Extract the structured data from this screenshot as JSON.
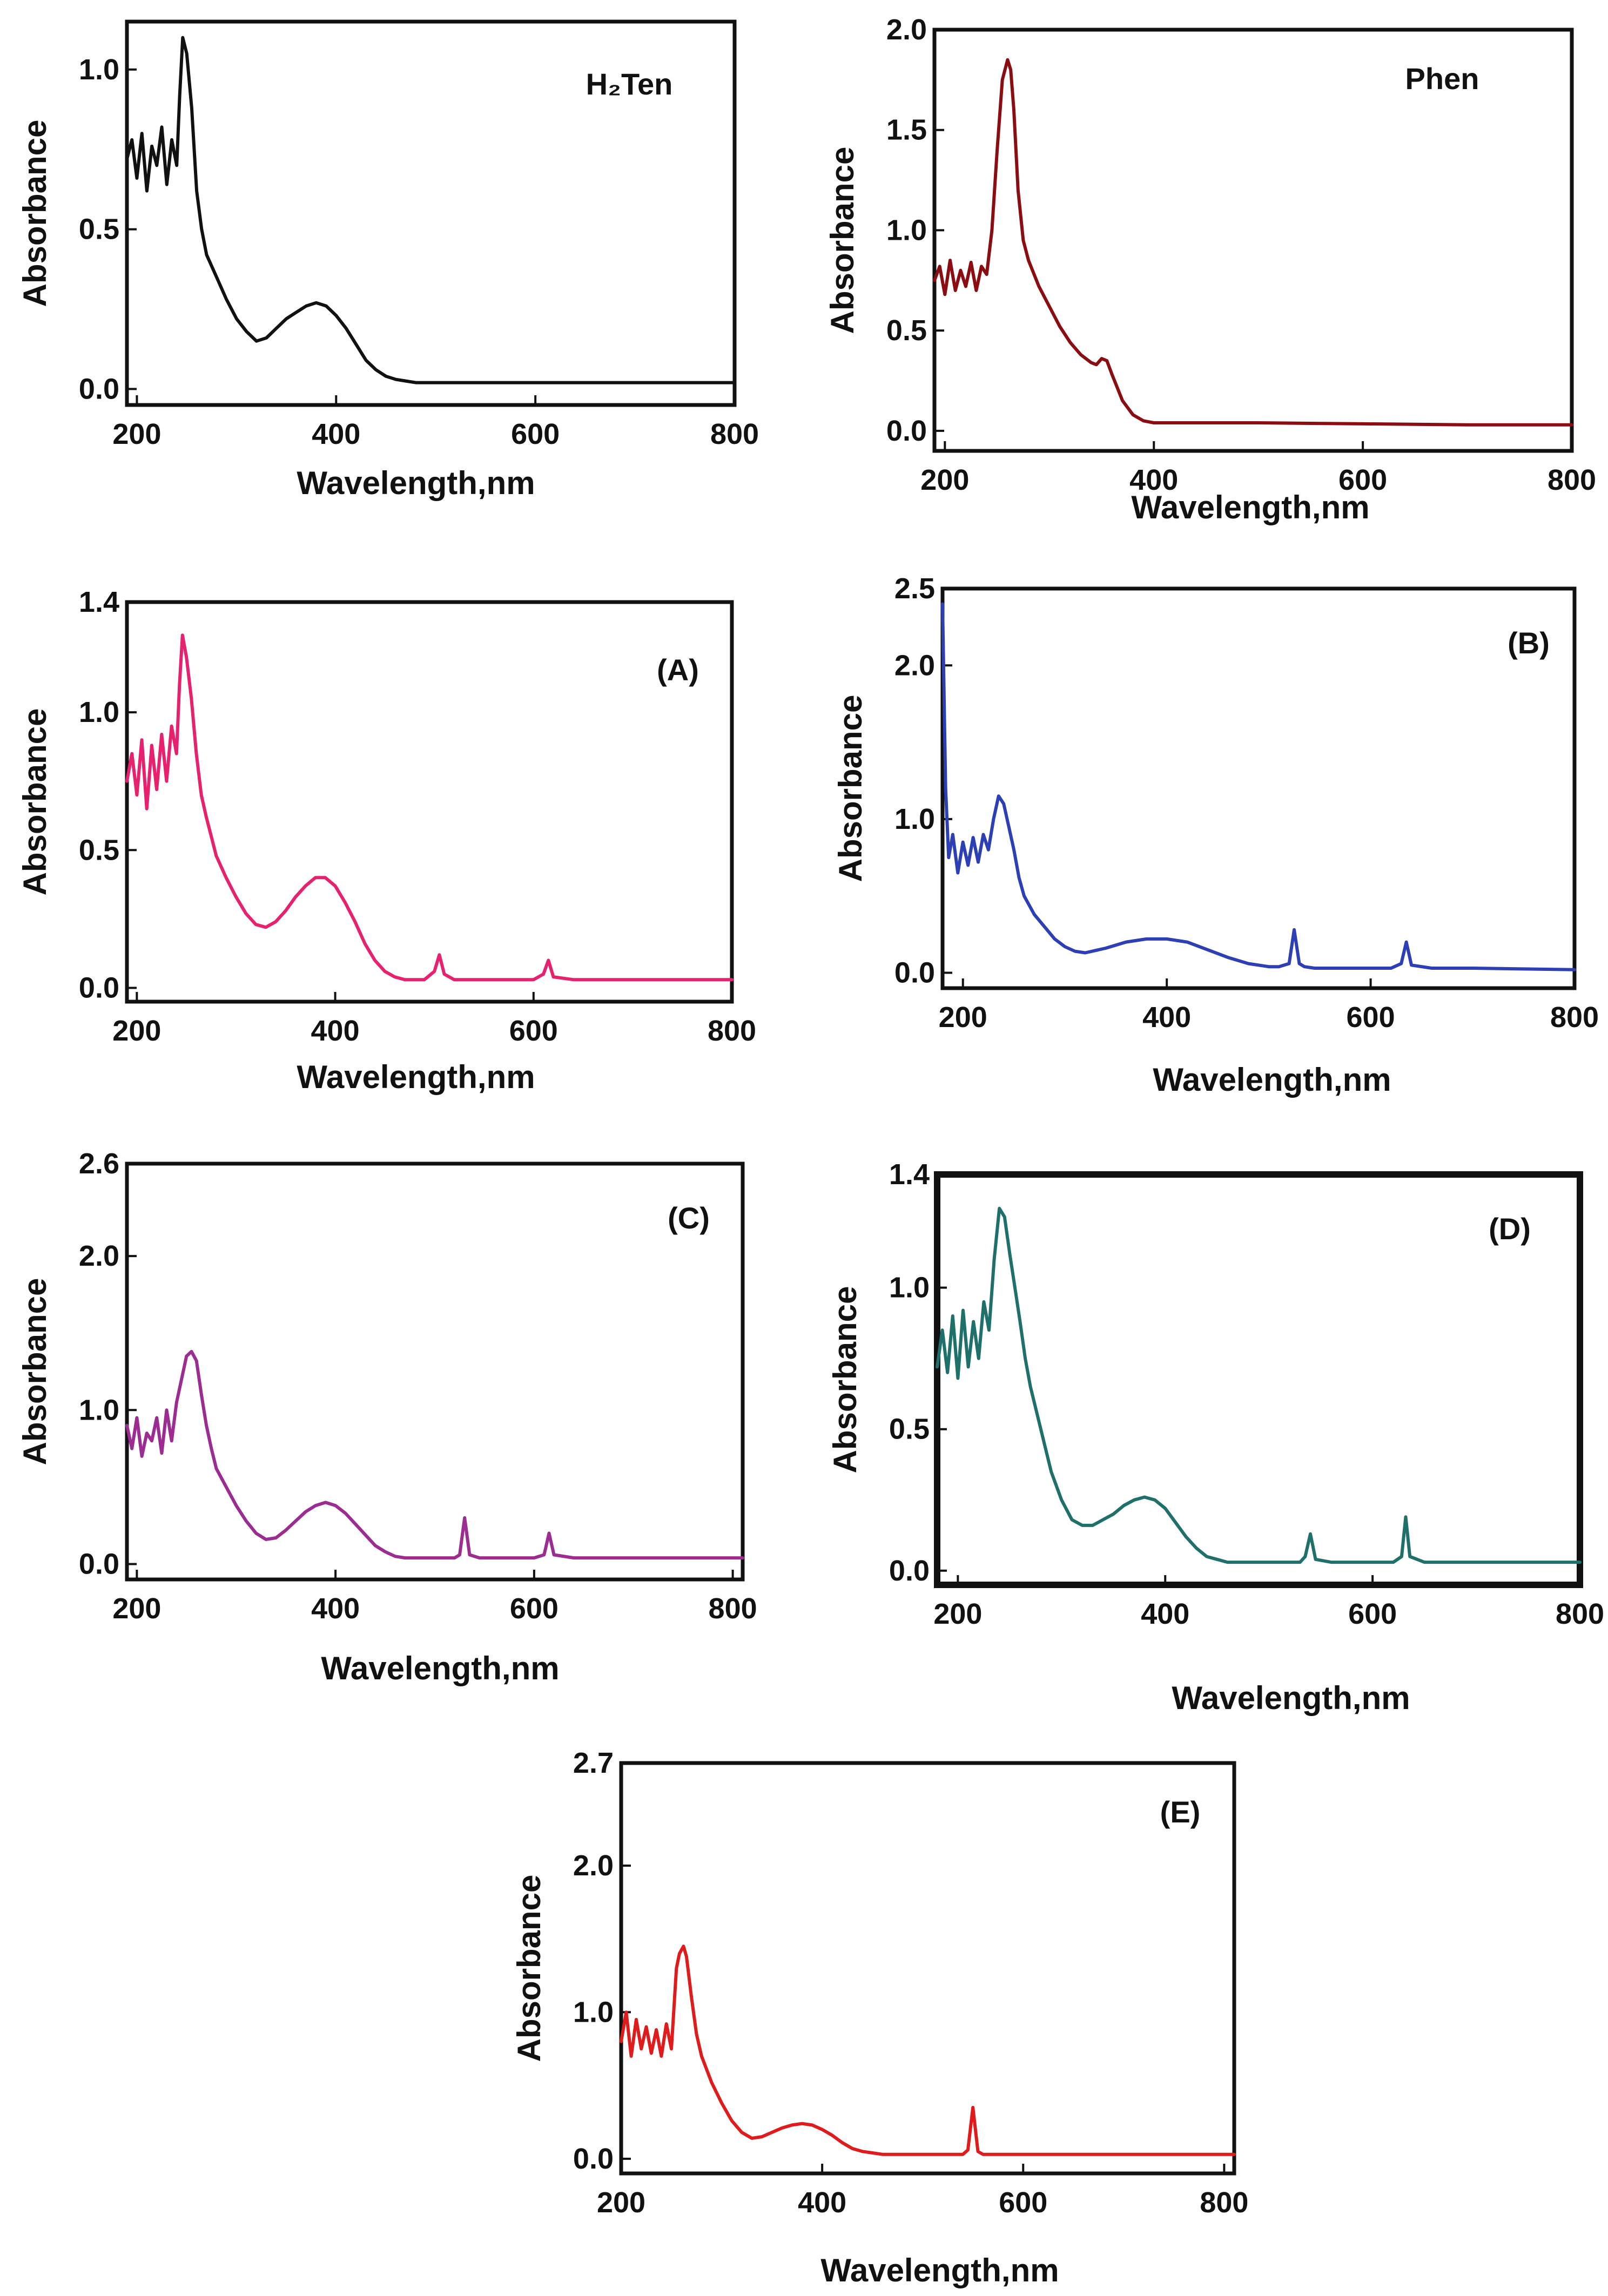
{
  "chart_data": [
    {
      "type": "line",
      "title": "H₂Ten",
      "xlabel": "Wavelength,nm",
      "ylabel": "Absorbance",
      "xlim": [
        190,
        800
      ],
      "ylim": [
        -0.05,
        1.15
      ],
      "xticks": [
        200,
        400,
        600,
        800
      ],
      "yticks": [
        0.0,
        0.5,
        1.0
      ],
      "ytick_labels": [
        "0.0",
        "0.5",
        "1.0"
      ],
      "color": "#111111",
      "series": [
        {
          "name": "H₂Ten",
          "x": [
            190,
            195,
            200,
            205,
            210,
            215,
            220,
            225,
            230,
            235,
            240,
            243,
            246,
            250,
            255,
            260,
            265,
            270,
            280,
            290,
            300,
            310,
            320,
            330,
            340,
            350,
            360,
            370,
            380,
            390,
            400,
            410,
            420,
            430,
            440,
            450,
            460,
            470,
            480,
            500,
            550,
            600,
            650,
            700,
            750,
            800
          ],
          "y": [
            0.72,
            0.78,
            0.66,
            0.8,
            0.62,
            0.76,
            0.7,
            0.82,
            0.64,
            0.78,
            0.7,
            0.92,
            1.1,
            1.05,
            0.88,
            0.62,
            0.5,
            0.42,
            0.35,
            0.28,
            0.22,
            0.18,
            0.15,
            0.16,
            0.19,
            0.22,
            0.24,
            0.26,
            0.27,
            0.26,
            0.23,
            0.19,
            0.14,
            0.09,
            0.06,
            0.04,
            0.03,
            0.025,
            0.02,
            0.02,
            0.02,
            0.02,
            0.02,
            0.02,
            0.02,
            0.02
          ]
        }
      ]
    },
    {
      "type": "line",
      "title": "Phen",
      "xlabel": "Wavelength,nm",
      "ylabel": "Absorbance",
      "xlim": [
        190,
        800
      ],
      "ylim": [
        -0.1,
        2.0
      ],
      "xticks": [
        200,
        400,
        600,
        800
      ],
      "yticks": [
        0.0,
        0.5,
        1.0,
        1.5,
        2.0
      ],
      "ytick_labels": [
        "0.0",
        "0.5",
        "1.0",
        "1.5",
        "2.0"
      ],
      "color": "#8b0d12",
      "series": [
        {
          "name": "Phen",
          "x": [
            190,
            195,
            200,
            205,
            210,
            215,
            220,
            225,
            230,
            235,
            240,
            245,
            250,
            255,
            260,
            263,
            266,
            270,
            275,
            280,
            290,
            300,
            310,
            320,
            330,
            340,
            345,
            350,
            355,
            360,
            370,
            380,
            390,
            400,
            450,
            500,
            600,
            700,
            800
          ],
          "y": [
            0.75,
            0.82,
            0.68,
            0.85,
            0.7,
            0.8,
            0.72,
            0.84,
            0.7,
            0.82,
            0.78,
            1.0,
            1.4,
            1.75,
            1.85,
            1.8,
            1.6,
            1.2,
            0.95,
            0.85,
            0.72,
            0.62,
            0.52,
            0.44,
            0.38,
            0.34,
            0.33,
            0.36,
            0.35,
            0.28,
            0.15,
            0.08,
            0.05,
            0.04,
            0.04,
            0.04,
            0.035,
            0.03,
            0.03
          ]
        }
      ]
    },
    {
      "type": "line",
      "title": "(A)",
      "xlabel": "Wavelength,nm",
      "ylabel": "Absorbance",
      "xlim": [
        190,
        800
      ],
      "ylim": [
        -0.05,
        1.4
      ],
      "xticks": [
        200,
        400,
        600,
        800
      ],
      "yticks": [
        0.0,
        0.5,
        1.0,
        1.4
      ],
      "ytick_labels": [
        "0.0",
        "0.5",
        "1.0",
        "1.4"
      ],
      "color": "#e8216f",
      "series": [
        {
          "name": "(A)",
          "x": [
            190,
            195,
            200,
            205,
            210,
            215,
            220,
            225,
            230,
            235,
            240,
            243,
            246,
            250,
            255,
            260,
            265,
            270,
            275,
            280,
            290,
            300,
            310,
            320,
            330,
            340,
            350,
            360,
            370,
            380,
            390,
            400,
            410,
            420,
            430,
            440,
            450,
            460,
            470,
            490,
            500,
            505,
            510,
            520,
            600,
            610,
            615,
            620,
            640,
            700,
            800
          ],
          "y": [
            0.75,
            0.85,
            0.7,
            0.9,
            0.65,
            0.88,
            0.72,
            0.92,
            0.75,
            0.95,
            0.85,
            1.1,
            1.28,
            1.2,
            1.05,
            0.85,
            0.7,
            0.62,
            0.55,
            0.48,
            0.4,
            0.33,
            0.27,
            0.23,
            0.22,
            0.24,
            0.28,
            0.33,
            0.37,
            0.4,
            0.4,
            0.37,
            0.31,
            0.24,
            0.16,
            0.1,
            0.06,
            0.04,
            0.03,
            0.03,
            0.06,
            0.12,
            0.05,
            0.03,
            0.03,
            0.05,
            0.1,
            0.04,
            0.03,
            0.03,
            0.03
          ]
        }
      ]
    },
    {
      "type": "line",
      "title": "(B)",
      "xlabel": "Wavelength,nm",
      "ylabel": "Absorbance",
      "xlim": [
        180,
        800
      ],
      "ylim": [
        -0.1,
        2.5
      ],
      "xticks": [
        200,
        400,
        600,
        800
      ],
      "yticks": [
        0.0,
        1.0,
        2.0,
        2.5
      ],
      "ytick_labels": [
        "0.0",
        "1.0",
        "2.0",
        "2.5"
      ],
      "color": "#2c3fb5",
      "series": [
        {
          "name": "(B)",
          "x": [
            180,
            183,
            186,
            190,
            195,
            200,
            205,
            210,
            215,
            220,
            225,
            230,
            235,
            240,
            245,
            250,
            255,
            260,
            270,
            280,
            290,
            300,
            310,
            320,
            340,
            360,
            380,
            400,
            420,
            440,
            460,
            480,
            500,
            510,
            520,
            525,
            530,
            535,
            545,
            600,
            620,
            630,
            635,
            640,
            660,
            700,
            800
          ],
          "y": [
            2.4,
            1.2,
            0.75,
            0.9,
            0.65,
            0.85,
            0.7,
            0.88,
            0.72,
            0.9,
            0.8,
            1.0,
            1.15,
            1.1,
            0.95,
            0.8,
            0.62,
            0.5,
            0.38,
            0.3,
            0.22,
            0.17,
            0.14,
            0.13,
            0.16,
            0.2,
            0.22,
            0.22,
            0.2,
            0.15,
            0.1,
            0.06,
            0.04,
            0.04,
            0.06,
            0.28,
            0.06,
            0.04,
            0.03,
            0.03,
            0.03,
            0.06,
            0.2,
            0.05,
            0.03,
            0.03,
            0.02
          ]
        }
      ]
    },
    {
      "type": "line",
      "title": "(C)",
      "xlabel": "Wavelength,nm",
      "ylabel": "Absorbance",
      "xlim": [
        190,
        810
      ],
      "ylim": [
        -0.1,
        2.6
      ],
      "xticks": [
        200,
        400,
        600,
        800
      ],
      "yticks": [
        0.0,
        1.0,
        2.0,
        2.6
      ],
      "ytick_labels": [
        "0.0",
        "1.0",
        "2.0",
        "2.6"
      ],
      "color": "#9c2c92",
      "series": [
        {
          "name": "(C)",
          "x": [
            190,
            195,
            200,
            205,
            210,
            215,
            220,
            225,
            230,
            235,
            240,
            245,
            250,
            255,
            260,
            265,
            270,
            275,
            280,
            290,
            300,
            310,
            320,
            330,
            340,
            350,
            360,
            370,
            380,
            390,
            400,
            410,
            420,
            430,
            440,
            450,
            460,
            470,
            500,
            520,
            525,
            530,
            535,
            545,
            600,
            610,
            615,
            620,
            640,
            700,
            810
          ],
          "y": [
            0.9,
            0.75,
            0.95,
            0.7,
            0.85,
            0.8,
            0.95,
            0.72,
            1.0,
            0.8,
            1.05,
            1.2,
            1.35,
            1.38,
            1.32,
            1.1,
            0.9,
            0.75,
            0.62,
            0.5,
            0.38,
            0.28,
            0.2,
            0.16,
            0.17,
            0.22,
            0.28,
            0.34,
            0.38,
            0.4,
            0.38,
            0.33,
            0.26,
            0.19,
            0.12,
            0.08,
            0.05,
            0.04,
            0.04,
            0.04,
            0.06,
            0.3,
            0.06,
            0.04,
            0.04,
            0.06,
            0.2,
            0.06,
            0.04,
            0.04,
            0.04
          ]
        }
      ]
    },
    {
      "type": "line",
      "title": "(D)",
      "xlabel": "Wavelength,nm",
      "ylabel": "Absorbance",
      "xlim": [
        180,
        800
      ],
      "ylim": [
        -0.05,
        1.4
      ],
      "xticks": [
        200,
        400,
        600,
        800
      ],
      "yticks": [
        0.0,
        0.5,
        1.0,
        1.4
      ],
      "ytick_labels": [
        "0.0",
        "0.5",
        "1.0",
        "1.4"
      ],
      "color": "#1f6f6b",
      "series": [
        {
          "name": "(D)",
          "x": [
            180,
            185,
            190,
            195,
            200,
            205,
            210,
            215,
            220,
            225,
            230,
            235,
            240,
            245,
            250,
            255,
            260,
            265,
            270,
            280,
            290,
            300,
            310,
            320,
            330,
            340,
            350,
            360,
            370,
            380,
            390,
            400,
            410,
            420,
            430,
            440,
            450,
            460,
            500,
            530,
            535,
            540,
            545,
            560,
            620,
            628,
            632,
            636,
            650,
            700,
            800
          ],
          "y": [
            0.72,
            0.85,
            0.7,
            0.9,
            0.68,
            0.92,
            0.72,
            0.88,
            0.75,
            0.95,
            0.85,
            1.1,
            1.28,
            1.25,
            1.12,
            1.0,
            0.88,
            0.75,
            0.65,
            0.5,
            0.35,
            0.25,
            0.18,
            0.16,
            0.16,
            0.18,
            0.2,
            0.23,
            0.25,
            0.26,
            0.25,
            0.22,
            0.17,
            0.12,
            0.08,
            0.05,
            0.04,
            0.03,
            0.03,
            0.03,
            0.05,
            0.13,
            0.04,
            0.03,
            0.03,
            0.05,
            0.19,
            0.05,
            0.03,
            0.03,
            0.03
          ]
        }
      ]
    },
    {
      "type": "line",
      "title": "(E)",
      "xlabel": "Wavelength,nm",
      "ylabel": "Absorbance",
      "xlim": [
        200,
        810
      ],
      "ylim": [
        -0.1,
        2.7
      ],
      "xticks": [
        200,
        400,
        600,
        800
      ],
      "yticks": [
        0.0,
        1.0,
        2.0,
        2.7
      ],
      "ytick_labels": [
        "0.0",
        "1.0",
        "2.0",
        "2.7"
      ],
      "color": "#e01b1b",
      "series": [
        {
          "name": "(E)",
          "x": [
            200,
            205,
            210,
            215,
            220,
            225,
            230,
            235,
            240,
            245,
            250,
            255,
            258,
            262,
            265,
            270,
            275,
            280,
            290,
            300,
            310,
            320,
            330,
            340,
            350,
            360,
            370,
            380,
            390,
            400,
            410,
            420,
            430,
            440,
            450,
            460,
            470,
            500,
            540,
            545,
            550,
            555,
            560,
            600,
            700,
            810
          ],
          "y": [
            0.8,
            1.0,
            0.7,
            0.95,
            0.75,
            0.9,
            0.72,
            0.88,
            0.7,
            0.92,
            0.75,
            1.3,
            1.4,
            1.45,
            1.38,
            1.1,
            0.85,
            0.7,
            0.52,
            0.38,
            0.26,
            0.18,
            0.14,
            0.15,
            0.18,
            0.21,
            0.23,
            0.24,
            0.23,
            0.2,
            0.16,
            0.11,
            0.07,
            0.05,
            0.04,
            0.03,
            0.03,
            0.03,
            0.03,
            0.06,
            0.35,
            0.05,
            0.03,
            0.03,
            0.03,
            0.03
          ]
        }
      ]
    }
  ]
}
